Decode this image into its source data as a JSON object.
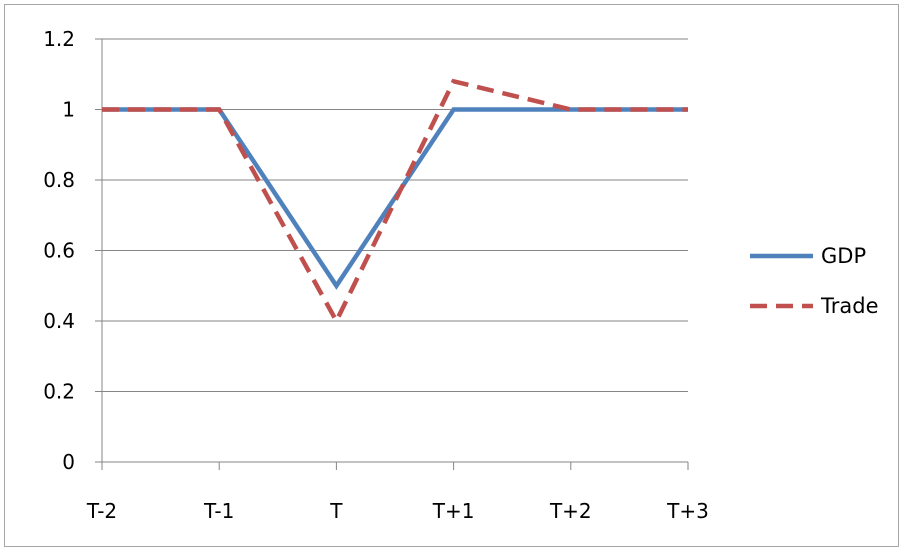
{
  "chart_data": {
    "type": "line",
    "categories": [
      "T-2",
      "T-1",
      "T",
      "T+1",
      "T+2",
      "T+3"
    ],
    "series": [
      {
        "name": "GDP",
        "values": [
          1,
          1,
          0.5,
          1,
          1,
          1
        ],
        "color": "#4f81bd",
        "style": "solid"
      },
      {
        "name": "Trade",
        "values": [
          1,
          1,
          0.4,
          1.08,
          1,
          1
        ],
        "color": "#c0504d",
        "style": "dashed"
      }
    ],
    "ylim": [
      0,
      1.2
    ],
    "yticks": [
      0,
      0.2,
      0.4,
      0.6,
      0.8,
      1,
      1.2
    ],
    "ytick_labels": [
      "0",
      "0.2",
      "0.4",
      "0.6",
      "0.8",
      "1",
      "1.2"
    ],
    "grid": true,
    "legend_position": "right",
    "title": "",
    "xlabel": "",
    "ylabel": ""
  }
}
